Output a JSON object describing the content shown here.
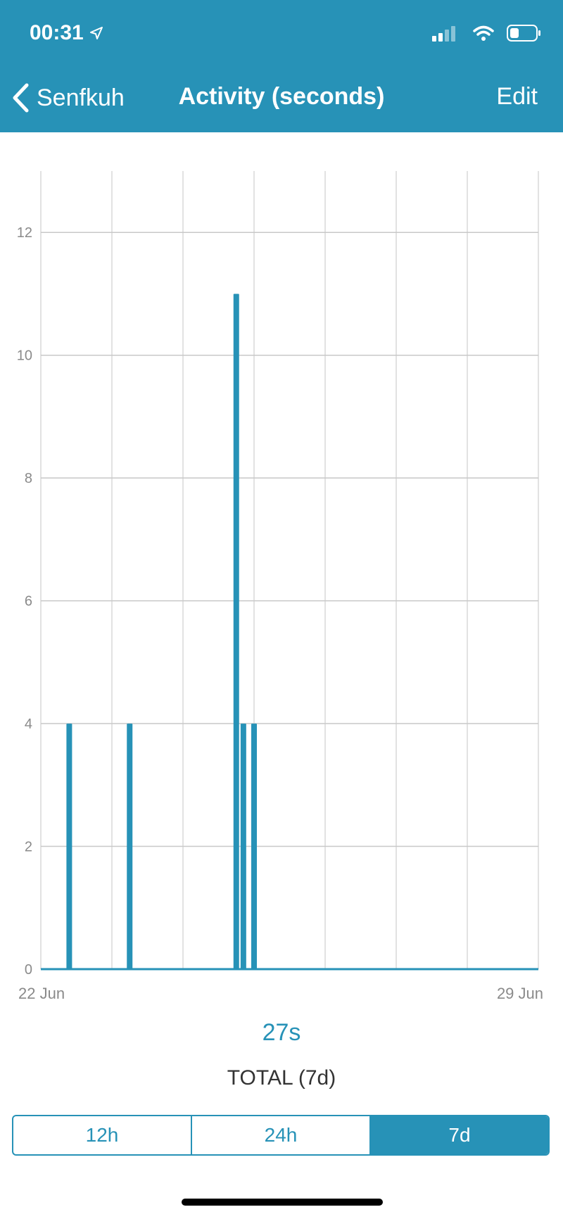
{
  "status_bar": {
    "time": "00:31",
    "icons": [
      "location-arrow-icon",
      "cellular-signal-icon",
      "wifi-icon",
      "battery-icon"
    ]
  },
  "nav": {
    "back_label": "Senfkuh",
    "title": "Activity (seconds)",
    "edit_label": "Edit"
  },
  "chart_data": {
    "type": "bar",
    "title": "",
    "xlabel": "",
    "ylabel": "",
    "x_range": [
      "22 Jun",
      "29 Jun"
    ],
    "x_tick_labels": [
      "22 Jun",
      "29 Jun"
    ],
    "y_ticks": [
      0,
      2,
      4,
      6,
      8,
      10,
      12
    ],
    "ylim": [
      0,
      13
    ],
    "grid": true,
    "color": "#2792b7",
    "bars": [
      {
        "day": 0.4,
        "value": 4
      },
      {
        "day": 1.25,
        "value": 4
      },
      {
        "day": 2.75,
        "value": 11
      },
      {
        "day": 2.85,
        "value": 4
      },
      {
        "day": 3.0,
        "value": 4
      }
    ]
  },
  "summary": {
    "total_value": "27s",
    "total_label": "TOTAL (7d)"
  },
  "range_selector": {
    "options": [
      "12h",
      "24h",
      "7d"
    ],
    "selected": "7d"
  },
  "colors": {
    "accent": "#2792b7"
  }
}
